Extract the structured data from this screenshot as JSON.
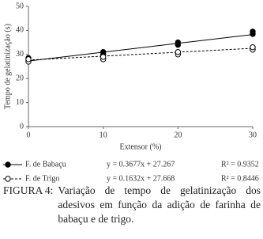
{
  "chart_data": {
    "type": "scatter",
    "y_label": "Tempo de gelatinização (s)",
    "x_label": "Extensor (%)",
    "xlim": [
      0,
      30
    ],
    "xticks": [
      0,
      10,
      20,
      30
    ],
    "ylim": [
      0,
      50
    ],
    "yticks": [
      0,
      10,
      20,
      30,
      40,
      50
    ],
    "series": [
      {
        "name": "F. de Babaçu",
        "color": "#000000",
        "marker": "filled",
        "line": "solid",
        "x": [
          0,
          0,
          10,
          10,
          20,
          20,
          30,
          30
        ],
        "values": [
          27.5,
          28.5,
          30,
          31,
          34,
          35,
          38.5,
          39.5
        ],
        "trend": {
          "slope": 0.3677,
          "intercept": 27.267
        },
        "equation": "y = 0.3677x + 27.267",
        "r_squared": "R² = 0.9352"
      },
      {
        "name": "F. de Trigo",
        "color": "#000000",
        "marker": "open",
        "line": "dashed",
        "x": [
          0,
          0,
          10,
          10,
          20,
          20,
          30,
          30
        ],
        "values": [
          27,
          28,
          28,
          29,
          30,
          31,
          32,
          33
        ],
        "trend": {
          "slope": 0.1632,
          "intercept": 27.668
        },
        "equation": "y = 0.1632x + 27.668",
        "r_squared": "R² = 0.8446"
      }
    ]
  },
  "caption": {
    "label": "FIGURA 4:",
    "text": "Variação de tempo de gelatinização dos adesivos em função da adição de farinha de babaçu e de trigo."
  }
}
